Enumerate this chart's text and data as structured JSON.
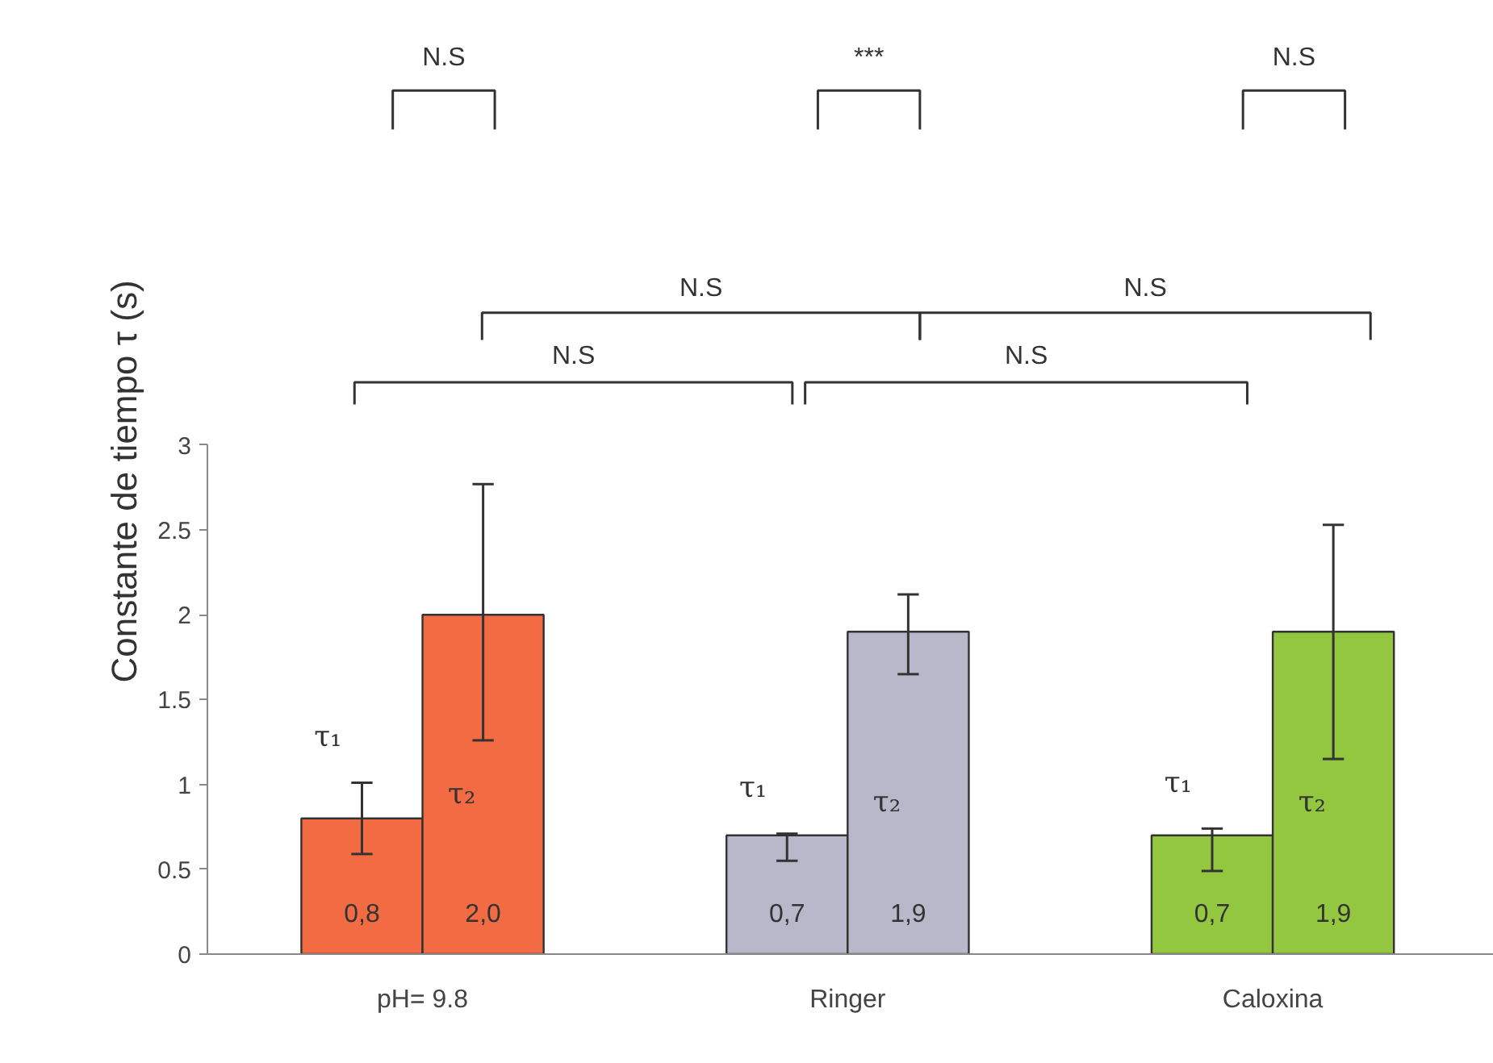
{
  "chart_data": {
    "type": "bar",
    "ylabel": "Constante de tiempo τ (s)",
    "categories": [
      "pH= 9.8",
      "Ringer",
      "Caloxina"
    ],
    "series": [
      {
        "name": "τ₁",
        "colors": [
          "#f26b43",
          "#b9b8cb",
          "#93c740"
        ],
        "values": [
          0.8,
          0.7,
          0.7
        ],
        "errors": [
          [
            0.59,
            1.01
          ],
          [
            0.55,
            0.71
          ],
          [
            0.49,
            0.74
          ]
        ],
        "value_labels": [
          "0,8",
          "0,7",
          "0,7"
        ]
      },
      {
        "name": "τ₂",
        "colors": [
          "#f26b43",
          "#b9b8cb",
          "#93c740"
        ],
        "values": [
          2.0,
          1.9,
          1.9
        ],
        "errors": [
          [
            1.26,
            2.77
          ],
          [
            1.65,
            2.12
          ],
          [
            1.15,
            2.53
          ]
        ],
        "value_labels": [
          "2,0",
          "1,9",
          "1,9"
        ]
      }
    ],
    "ylim": [
      0,
      3
    ],
    "yticks": [
      0,
      0.5,
      1,
      1.5,
      2,
      2.5,
      3
    ],
    "grid": false,
    "legend": false,
    "annotations": [
      "N.S",
      "***",
      "N.S",
      "N.S",
      "N.S",
      "N.S",
      "N.S"
    ]
  }
}
